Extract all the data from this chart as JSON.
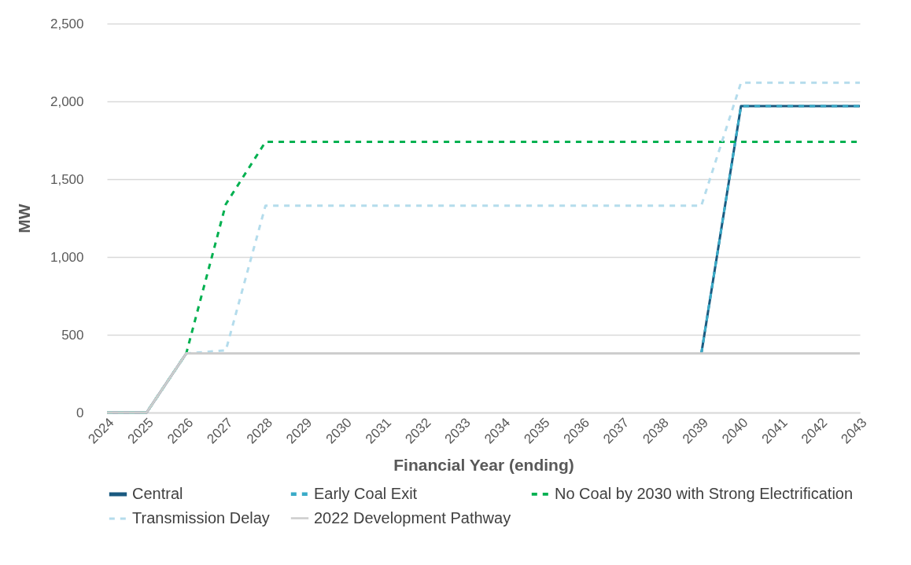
{
  "chart_data": {
    "type": "line",
    "xlabel": "Financial Year (ending)",
    "ylabel": "MW",
    "categories": [
      "2024",
      "2025",
      "2026",
      "2027",
      "2028",
      "2029",
      "2030",
      "2031",
      "2032",
      "2033",
      "2034",
      "2035",
      "2036",
      "2037",
      "2038",
      "2039",
      "2040",
      "2041",
      "2042",
      "2043"
    ],
    "series": [
      {
        "name": "Central",
        "color": "#1a5a80",
        "line_style": "solid",
        "values": [
          0,
          0,
          380,
          null,
          null,
          null,
          null,
          null,
          null,
          null,
          null,
          null,
          null,
          null,
          null,
          380,
          1970,
          1970,
          1970,
          1970
        ]
      },
      {
        "name": "Early Coal Exit",
        "color": "#3aabc8",
        "line_style": "dashed",
        "values": [
          0,
          0,
          380,
          null,
          null,
          null,
          null,
          null,
          null,
          null,
          null,
          null,
          null,
          null,
          null,
          380,
          1970,
          1970,
          1970,
          1970
        ]
      },
      {
        "name": "No Coal by 2030 with Strong Electrification",
        "color": "#00b050",
        "line_style": "dashed",
        "values": [
          0,
          0,
          380,
          1340,
          1740,
          1740,
          1740,
          1740,
          1740,
          1740,
          1740,
          1740,
          1740,
          1740,
          1740,
          1740,
          1740,
          1740,
          1740,
          1740
        ]
      },
      {
        "name": "Transmission Delay",
        "color": "#b4dcec",
        "line_style": "dashed",
        "values": [
          0,
          0,
          380,
          400,
          1330,
          1330,
          1330,
          1330,
          1330,
          1330,
          1330,
          1330,
          1330,
          1330,
          1330,
          1330,
          2120,
          2120,
          2120,
          2120
        ]
      },
      {
        "name": "2022 Development Pathway",
        "color": "#cccccc",
        "line_style": "solid",
        "values": [
          0,
          0,
          380,
          380,
          380,
          380,
          380,
          380,
          380,
          380,
          380,
          380,
          380,
          380,
          380,
          380,
          380,
          380,
          380,
          380
        ]
      }
    ],
    "ylim": [
      0,
      2500
    ],
    "yticks": [
      {
        "value": 0,
        "label": "0"
      },
      {
        "value": 500,
        "label": "500"
      },
      {
        "value": 1000,
        "label": "1,000"
      },
      {
        "value": 1500,
        "label": "1,500"
      },
      {
        "value": 2000,
        "label": "2,000"
      },
      {
        "value": 2500,
        "label": "2,500"
      }
    ],
    "grid": "y",
    "legend": "bottom",
    "marker": "none"
  }
}
